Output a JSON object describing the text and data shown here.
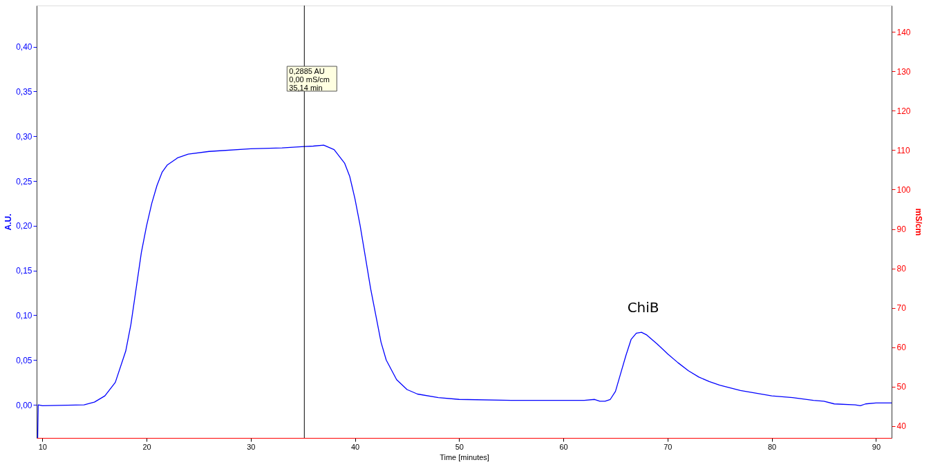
{
  "chart_data": {
    "type": "line",
    "xlabel": "Time [minutes]",
    "ylabel": "A.U.",
    "y2label": "mS/cm",
    "xlim": [
      9.45,
      91.5
    ],
    "xticks": [
      10,
      20,
      30,
      40,
      50,
      60,
      70,
      80,
      90
    ],
    "ylim": [
      -0.037,
      0.446
    ],
    "yticks": [
      {
        "value": 0,
        "label": "0,00"
      },
      {
        "value": 0.05,
        "label": "0,05"
      },
      {
        "value": 0.1,
        "label": "0,10"
      },
      {
        "value": 0.15,
        "label": "0,15"
      },
      {
        "value": 0.2,
        "label": "0,20"
      },
      {
        "value": 0.25,
        "label": "0,25"
      },
      {
        "value": 0.3,
        "label": "0,30"
      },
      {
        "value": 0.35,
        "label": "0,35"
      },
      {
        "value": 0.4,
        "label": "0,40"
      }
    ],
    "y2lim": [
      37,
      146.7
    ],
    "y2ticks": [
      40,
      50,
      60,
      70,
      80,
      90,
      100,
      110,
      120,
      130,
      140
    ],
    "grid": false,
    "marker": "none",
    "line_style": "solid",
    "ref_lines": [
      {
        "axis": "x",
        "value": 35.14,
        "color": "#000000"
      }
    ],
    "annotations": [
      "0,2885 AU\n0,00 mS/cm\n35,14 min",
      {
        "text": "ChiB",
        "x": 67.2,
        "y": 0.081
      }
    ],
    "series": [
      {
        "color": "#0000ff",
        "x": [
          9.55,
          9.6,
          10,
          14,
          15,
          16,
          17,
          18,
          18.5,
          19,
          19.5,
          20,
          20.5,
          21,
          21.5,
          22,
          23,
          24,
          26,
          30,
          33,
          35.14,
          36,
          37,
          38,
          39,
          39.5,
          40,
          40.5,
          41,
          41.5,
          42,
          42.5,
          43,
          44,
          45,
          46,
          48,
          50,
          55,
          60,
          62,
          63,
          63.5,
          64,
          64.5,
          65,
          65.5,
          66,
          66.5,
          67,
          67.5,
          68,
          69,
          70,
          71,
          72,
          73,
          74,
          75,
          77,
          80,
          82,
          84,
          85,
          86,
          88,
          88.5,
          89,
          90,
          91.5
        ],
        "values": [
          -0.037,
          0.0,
          -0.001,
          0.0,
          0.003,
          0.01,
          0.025,
          0.06,
          0.09,
          0.13,
          0.17,
          0.2,
          0.225,
          0.245,
          0.26,
          0.268,
          0.276,
          0.28,
          0.283,
          0.286,
          0.287,
          0.2885,
          0.289,
          0.29,
          0.285,
          0.27,
          0.255,
          0.23,
          0.2,
          0.165,
          0.13,
          0.1,
          0.07,
          0.05,
          0.028,
          0.017,
          0.012,
          0.008,
          0.006,
          0.005,
          0.005,
          0.005,
          0.006,
          0.004,
          0.004,
          0.006,
          0.015,
          0.035,
          0.055,
          0.073,
          0.08,
          0.081,
          0.078,
          0.068,
          0.057,
          0.047,
          0.038,
          0.031,
          0.026,
          0.022,
          0.016,
          0.01,
          0.008,
          0.005,
          0.004,
          0.001,
          0.0,
          -0.001,
          0.001,
          0.002,
          0.002
        ]
      }
    ]
  }
}
